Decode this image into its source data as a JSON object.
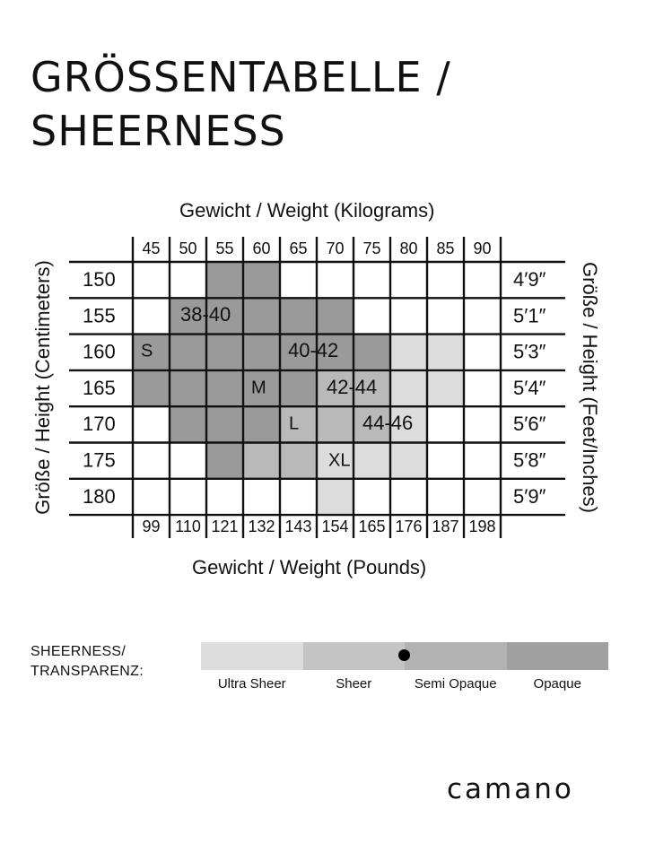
{
  "title": {
    "line1": "GRÖSSENTABELLE /",
    "line2": "SHEERNESS"
  },
  "axes": {
    "kg_title": "Gewicht / Weight (Kilograms)",
    "lb_title": "Gewicht / Weight (Pounds)",
    "cm_title": "Größe / Height (Centimeters)",
    "ft_title": "Größe / Height  (Feet/Inches)"
  },
  "colors": {
    "light": "#dcdcdc",
    "medium": "#b9b9b9",
    "dark": "#9a9a9a",
    "line": "#111111"
  },
  "chart_data": {
    "type": "table",
    "weight_kg": [
      "45",
      "50",
      "55",
      "60",
      "65",
      "70",
      "75",
      "80",
      "85",
      "90"
    ],
    "weight_lb": [
      "99",
      "110",
      "121",
      "132",
      "143",
      "154",
      "165",
      "176",
      "187",
      "198"
    ],
    "height_cm": [
      "150",
      "155",
      "160",
      "165",
      "170",
      "175",
      "180"
    ],
    "height_ft": [
      "4′9″",
      "5′1″",
      "5′3″",
      "5′4″",
      "5′6″",
      "5′8″",
      "5′9″"
    ],
    "sizes": [
      {
        "label": "S",
        "band": "38-40",
        "shade": "dark",
        "cells": [
          [
            0,
            2
          ],
          [
            0,
            3
          ],
          [
            1,
            1
          ],
          [
            1,
            2
          ],
          [
            1,
            3
          ],
          [
            1,
            4
          ],
          [
            1,
            5
          ],
          [
            2,
            0
          ],
          [
            2,
            1
          ],
          [
            2,
            2
          ],
          [
            2,
            3
          ],
          [
            2,
            4
          ],
          [
            3,
            0
          ],
          [
            3,
            1
          ],
          [
            3,
            2
          ],
          [
            3,
            3
          ],
          [
            4,
            1
          ],
          [
            4,
            2
          ]
        ]
      },
      {
        "label": "M",
        "band": "40-42",
        "shade": "dark",
        "cells": [
          [
            2,
            4
          ],
          [
            2,
            5
          ],
          [
            2,
            6
          ],
          [
            3,
            3
          ],
          [
            3,
            4
          ],
          [
            4,
            2
          ],
          [
            4,
            3
          ],
          [
            5,
            2
          ]
        ]
      },
      {
        "label": "L",
        "band": "42-44",
        "shade": "medium",
        "cells": [
          [
            3,
            5
          ],
          [
            3,
            6
          ],
          [
            4,
            4
          ],
          [
            4,
            5
          ],
          [
            4,
            6
          ],
          [
            5,
            3
          ],
          [
            5,
            4
          ],
          [
            5,
            5
          ],
          [
            5,
            6
          ]
        ]
      },
      {
        "label": "XL",
        "band": "44-46",
        "shade": "light",
        "cells": [
          [
            2,
            7
          ],
          [
            2,
            8
          ],
          [
            3,
            7
          ],
          [
            3,
            8
          ],
          [
            4,
            7
          ],
          [
            5,
            5
          ],
          [
            5,
            6
          ],
          [
            5,
            7
          ],
          [
            6,
            5
          ]
        ]
      }
    ]
  },
  "sheerness": {
    "label_line1": "SHEERNESS/",
    "label_line2": "TRANSPARENZ:",
    "levels": [
      "Ultra Sheer",
      "Sheer",
      "Semi Opaque",
      "Opaque"
    ],
    "level_colors": [
      "#dcdcdc",
      "#c4c4c4",
      "#b2b2b2",
      "#a0a0a0"
    ],
    "selected": "Semi Opaque"
  },
  "brand": "camano"
}
